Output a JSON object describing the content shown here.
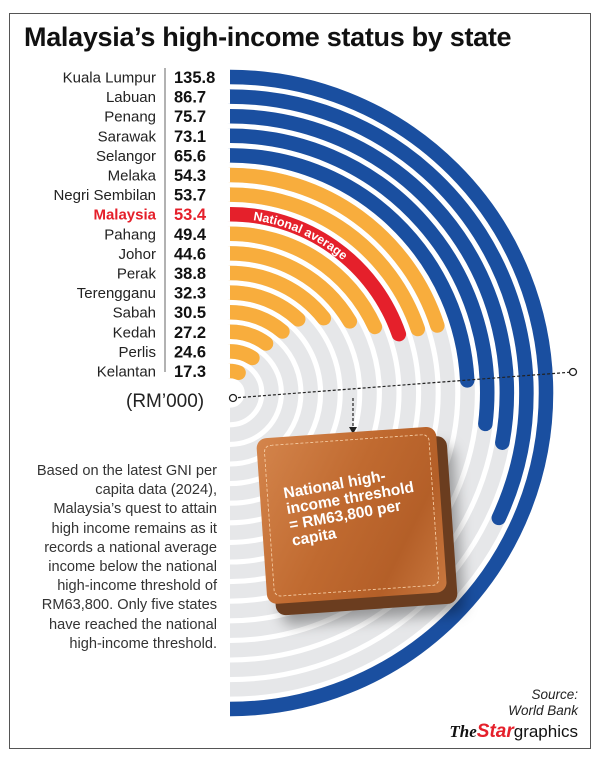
{
  "title": "Malaysia’s high-income status by state",
  "unit_label": "(RM’000)",
  "note": "Based on the latest GNI per capita data (2024), Malaysia’s quest to attain high income remains as it records a national average income below the national high-income threshold of RM63,800. Only five states have reached the national high-income threshold.",
  "source": {
    "line1": "Source:",
    "line2": "World Bank"
  },
  "brand": {
    "the": "The",
    "star": "Star",
    "graphics": "graphics"
  },
  "wallet_text": "National high-income threshold = RM63,800 per capita",
  "colors": {
    "above_threshold": "#1a4fa0",
    "below_threshold": "#f8ad3d",
    "national": "#e5202b",
    "track": "#e6e7e9"
  },
  "chart_data": {
    "type": "radial-bar",
    "title": "Malaysia’s high-income status by state",
    "unit": "RM’000",
    "value_for_half_circle": 135.8,
    "threshold": 63.8,
    "threshold_label": "National high-income threshold = RM63,800 per capita",
    "national_average_label": "National average",
    "categories": [
      "Kuala Lumpur",
      "Labuan",
      "Penang",
      "Sarawak",
      "Selangor",
      "Melaka",
      "Negri Sembilan",
      "Malaysia",
      "Pahang",
      "Johor",
      "Perak",
      "Terengganu",
      "Sabah",
      "Kedah",
      "Perlis",
      "Kelantan"
    ],
    "values": [
      135.8,
      86.7,
      75.7,
      73.1,
      65.6,
      54.3,
      53.7,
      53.4,
      49.4,
      44.6,
      38.8,
      32.3,
      30.5,
      27.2,
      24.6,
      17.3
    ],
    "highlight": "Malaysia"
  }
}
